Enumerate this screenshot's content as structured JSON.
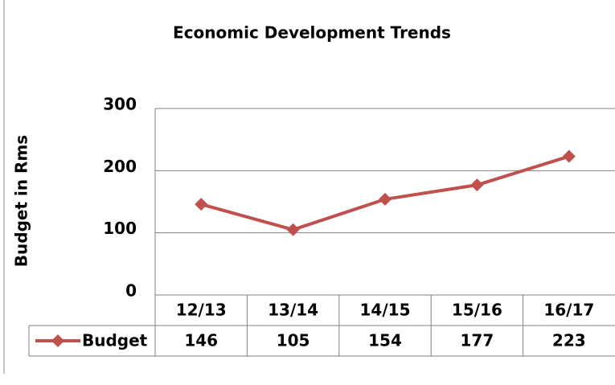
{
  "chart_data": {
    "type": "line",
    "title": "Economic Development Trends",
    "ylabel": "Budget in Rms",
    "categories": [
      "12/13",
      "13/14",
      "14/15",
      "15/16",
      "16/17"
    ],
    "series": [
      {
        "name": "Budget",
        "color": "#c0504d",
        "values": [
          146,
          105,
          154,
          177,
          223
        ]
      }
    ],
    "ylim": [
      0,
      300
    ],
    "yticks": [
      0,
      100,
      200,
      300
    ],
    "grid": true
  }
}
